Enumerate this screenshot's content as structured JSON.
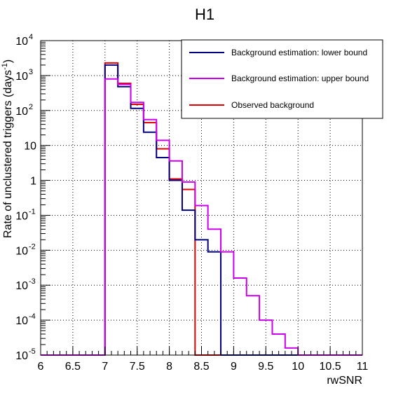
{
  "chart_data": {
    "type": "step-histogram",
    "title": "H1",
    "xlabel": "rwSNR",
    "ylabel": "Rate of unclustered triggers (days",
    "ylabel_sup": "-1",
    "ylabel_close": ")",
    "xlim": [
      6,
      11
    ],
    "ylim": [
      1e-05,
      10000
    ],
    "yscale": "log",
    "grid": true,
    "legend_position": "top-right",
    "x_ticks": [
      {
        "value": 6,
        "label": "6"
      },
      {
        "value": 6.5,
        "label": "6.5"
      },
      {
        "value": 7,
        "label": "7"
      },
      {
        "value": 7.5,
        "label": "7.5"
      },
      {
        "value": 8,
        "label": "8"
      },
      {
        "value": 8.5,
        "label": "8.5"
      },
      {
        "value": 9,
        "label": "9"
      },
      {
        "value": 9.5,
        "label": "9.5"
      },
      {
        "value": 10,
        "label": "10"
      },
      {
        "value": 10.5,
        "label": "10.5"
      },
      {
        "value": 11,
        "label": "11"
      }
    ],
    "y_ticks": [
      {
        "value": 1e-05,
        "base": "10",
        "exp": "-5"
      },
      {
        "value": 0.0001,
        "base": "10",
        "exp": "-4"
      },
      {
        "value": 0.001,
        "base": "10",
        "exp": "-3"
      },
      {
        "value": 0.01,
        "base": "10",
        "exp": "-2"
      },
      {
        "value": 0.1,
        "base": "10",
        "exp": "-1"
      },
      {
        "value": 1,
        "base": "1",
        "exp": ""
      },
      {
        "value": 10,
        "base": "10",
        "exp": ""
      },
      {
        "value": 100,
        "base": "10",
        "exp": "2"
      },
      {
        "value": 1000,
        "base": "10",
        "exp": "3"
      },
      {
        "value": 10000,
        "base": "10",
        "exp": "4"
      }
    ],
    "bin_edges": [
      7.0,
      7.2,
      7.4,
      7.6,
      7.8,
      8.0,
      8.2,
      8.4,
      8.6,
      8.8,
      9.0,
      9.2,
      9.4,
      9.6,
      9.8,
      10.0
    ],
    "series": [
      {
        "name": "Background estimation: lower bound",
        "color": "#000080",
        "values": [
          2000,
          480,
          115,
          24,
          4.5,
          1.0,
          0.14,
          0.02,
          0.009,
          1e-05,
          1e-05,
          1e-05,
          1e-05,
          1e-05,
          1e-05
        ]
      },
      {
        "name": "Background estimation: upper bound",
        "color": "#cc00ee",
        "values": [
          800,
          560,
          170,
          55,
          14,
          3.6,
          0.9,
          0.19,
          0.04,
          0.009,
          0.0016,
          0.0005,
          0.0001,
          4e-05,
          1.6e-05
        ]
      },
      {
        "name": "Observed background",
        "color": "#dd0000",
        "values": [
          2300,
          600,
          150,
          45,
          8,
          1.1,
          0.55,
          1e-05,
          1e-05,
          1e-05,
          1e-05,
          1e-05,
          1e-05,
          1e-05,
          1e-05
        ]
      }
    ]
  }
}
